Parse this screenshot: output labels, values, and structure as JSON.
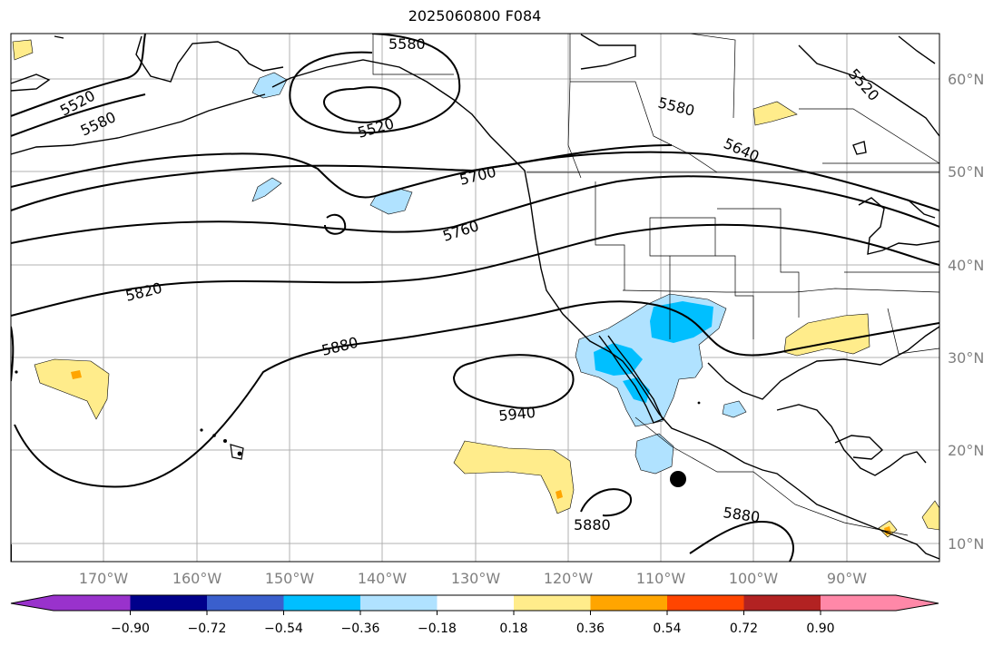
{
  "title": "2025060800 F084",
  "map": {
    "lon_range": [
      -180,
      -80
    ],
    "lat_range": [
      7,
      64
    ],
    "lon_ticks": [
      "170°W",
      "160°W",
      "150°W",
      "140°W",
      "130°W",
      "120°W",
      "110°W",
      "100°W",
      "90°W"
    ],
    "lat_ticks": [
      "60°N",
      "50°N",
      "40°N",
      "30°N",
      "20°N",
      "10°N"
    ],
    "contour_labels": [
      "5520",
      "5580",
      "5580",
      "5520",
      "5580",
      "5640",
      "5520",
      "5700",
      "5760",
      "5820",
      "5880",
      "5940",
      "5880",
      "5880"
    ],
    "marker": "storm-center-dot"
  },
  "colorbar": {
    "ticks": [
      "−0.90",
      "−0.72",
      "−0.54",
      "−0.36",
      "−0.18",
      "0.18",
      "0.36",
      "0.54",
      "0.72",
      "0.90"
    ],
    "colors": [
      "#9932cc",
      "#00008b",
      "#3a5fcd",
      "#00bfff",
      "#b0e2ff",
      "#ffffff",
      "#ffec8b",
      "#ffa500",
      "#ff4500",
      "#b22222",
      "#ff88a8"
    ]
  }
}
